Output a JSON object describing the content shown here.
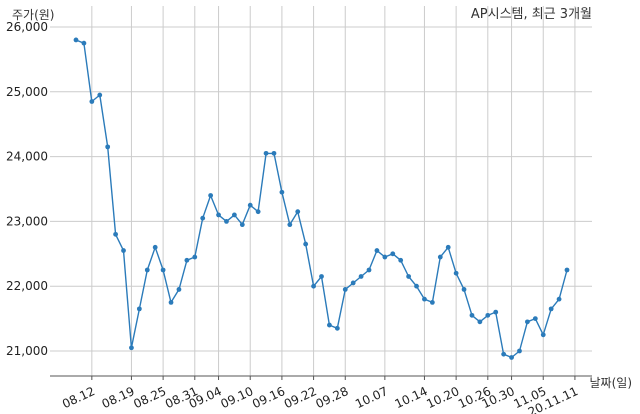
{
  "chart_data": {
    "type": "line",
    "title": "AP시스템, 최근 3개월",
    "ylabel": "주가(원)",
    "xlabel": "날짜(일)",
    "ylim": [
      20600,
      26000
    ],
    "yticks": [
      21000,
      22000,
      23000,
      24000,
      25000,
      26000
    ],
    "ytick_labels": [
      "21,000",
      "22,000",
      "23,000",
      "24,000",
      "25,000",
      "26,000"
    ],
    "xtick_labels": [
      "08.12",
      "08.19",
      "08.25",
      "08.31",
      "09.04",
      "09.10",
      "09.16",
      "09.22",
      "09.28",
      "10.07",
      "10.14",
      "10.20",
      "10.26",
      "10.30",
      "11.05",
      "20.11.11"
    ],
    "xtick_index": [
      2,
      7,
      11,
      15,
      18,
      22,
      26,
      30,
      34,
      39,
      44,
      48,
      52,
      55,
      59,
      63
    ],
    "grid": true,
    "line_color": "#2b7bba",
    "series": [
      {
        "values": [
          25800,
          25750,
          24850,
          24950,
          24150,
          22800,
          22550,
          21050,
          21650,
          22250,
          22600,
          22250,
          21750,
          21950,
          22400,
          22450,
          23050,
          23400,
          23100,
          23000,
          23100,
          22950,
          23250,
          23150,
          24050,
          24050,
          23450,
          22950,
          23150,
          22650,
          22000,
          22150,
          21400,
          21350,
          21950,
          22050,
          22150,
          22250,
          22550,
          22450,
          22500,
          22400,
          22150,
          22000,
          21800,
          21750,
          22450,
          22600,
          22200,
          21950,
          21550,
          21450,
          21550,
          21600,
          20950,
          20900,
          21000,
          21450,
          21500,
          21250,
          21650,
          21800,
          22250
        ]
      }
    ]
  }
}
